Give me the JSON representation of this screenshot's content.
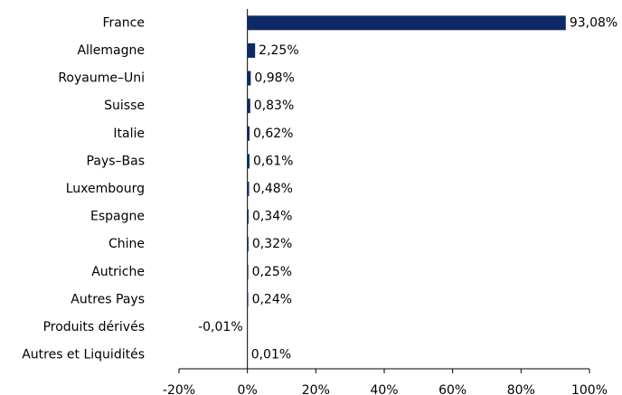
{
  "chart_data": {
    "type": "bar",
    "orientation": "horizontal",
    "categories": [
      "France",
      "Allemagne",
      "Royaume–Uni",
      "Suisse",
      "Italie",
      "Pays–Bas",
      "Luxembourg",
      "Espagne",
      "Chine",
      "Autriche",
      "Autres Pays",
      "Produits dérivés",
      "Autres et Liquidités"
    ],
    "values": [
      93.08,
      2.25,
      0.98,
      0.83,
      0.62,
      0.61,
      0.48,
      0.34,
      0.32,
      0.25,
      0.24,
      -0.01,
      0.01
    ],
    "value_labels": [
      "93,08%",
      "2,25%",
      "0,98%",
      "0,83%",
      "0,62%",
      "0,61%",
      "0,48%",
      "0,34%",
      "0,32%",
      "0,25%",
      "0,24%",
      "-0,01%",
      "0,01%"
    ],
    "color": "#0b2a66",
    "xlim": [
      -20,
      100
    ],
    "xticks": [
      {
        "value": -20,
        "label": "-20%"
      },
      {
        "value": 0,
        "label": "0%"
      },
      {
        "value": 20,
        "label": "20%"
      },
      {
        "value": 40,
        "label": "40%"
      },
      {
        "value": 60,
        "label": "60%"
      },
      {
        "value": 80,
        "label": "80%"
      },
      {
        "value": 100,
        "label": "100%"
      }
    ],
    "grid": false
  }
}
